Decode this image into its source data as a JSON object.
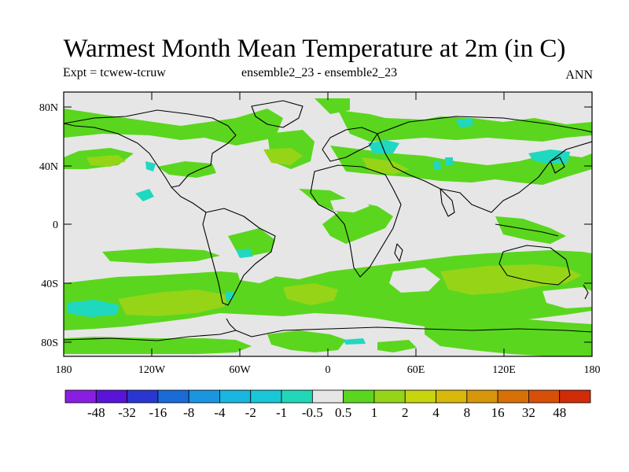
{
  "title": "Warmest Month Mean Temperature at 2m (in C)",
  "subtitle_left": "Expt = tcwew-tcruw",
  "subtitle_center": "ensemble2_23 - ensemble2_23",
  "subtitle_right": "ANN",
  "map": {
    "projection": "cylindrical-equidistant",
    "background_color": "#e6e6e6",
    "lat_ticks": [
      "80N",
      "40N",
      "0",
      "40S",
      "80S"
    ],
    "lon_ticks": [
      "180",
      "120W",
      "60W",
      "0",
      "60E",
      "120E",
      "180"
    ]
  },
  "colorbar": {
    "colors": [
      "#8a1ee0",
      "#5a14d8",
      "#2a36d0",
      "#1a6ad8",
      "#1a96e0",
      "#18b6e0",
      "#18c8d8",
      "#20d8b8",
      "#e6e6e6",
      "#5ad61e",
      "#96d418",
      "#c8d40e",
      "#d8b80a",
      "#d8960a",
      "#d87008",
      "#d85008",
      "#d02c08"
    ],
    "labels": [
      "-48",
      "-32",
      "-16",
      "-8",
      "-4",
      "-2",
      "-1",
      "-0.5",
      "0.5",
      "1",
      "2",
      "4",
      "8",
      "16",
      "32",
      "48"
    ]
  }
}
